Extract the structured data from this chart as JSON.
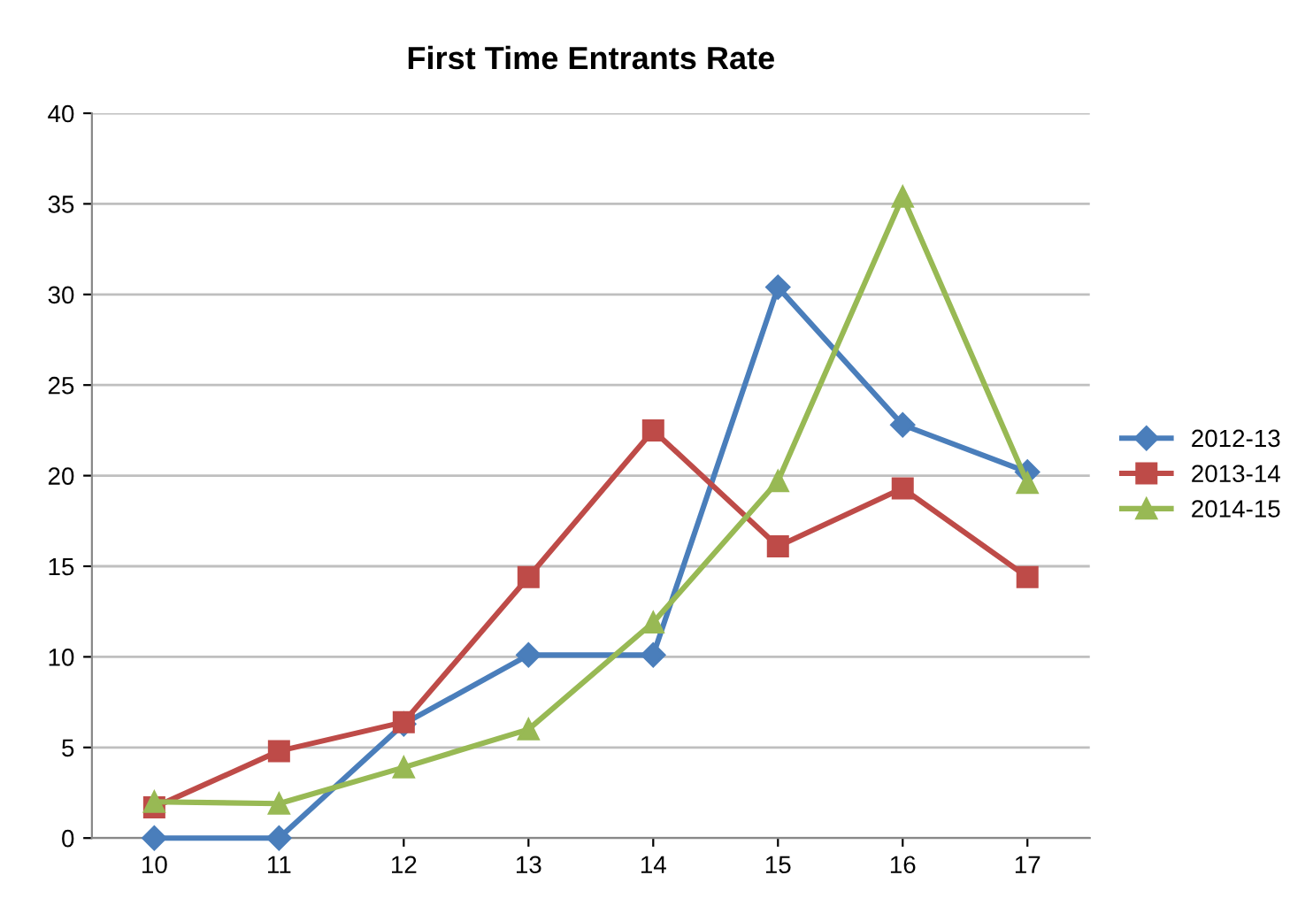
{
  "chart_data": {
    "type": "line",
    "title": "First Time Entrants Rate",
    "categories": [
      "10",
      "11",
      "12",
      "13",
      "14",
      "15",
      "16",
      "17"
    ],
    "series": [
      {
        "name": "2012-13",
        "color": "#4a7ebb",
        "marker": "diamond",
        "values": [
          0,
          0,
          6.3,
          10.1,
          10.1,
          30.4,
          22.8,
          20.2
        ]
      },
      {
        "name": "2013-14",
        "color": "#be4b48",
        "marker": "square",
        "values": [
          1.7,
          4.8,
          6.4,
          14.4,
          22.5,
          16.1,
          19.3,
          14.4
        ]
      },
      {
        "name": "2014-15",
        "color": "#98b954",
        "marker": "triangle",
        "values": [
          2.0,
          1.9,
          3.9,
          6.0,
          11.9,
          19.7,
          35.4,
          19.6
        ]
      }
    ],
    "ylim": [
      0,
      40
    ],
    "yticks": [
      0,
      5,
      10,
      15,
      20,
      25,
      30,
      35,
      40
    ],
    "grid": "y",
    "legend": "right"
  }
}
